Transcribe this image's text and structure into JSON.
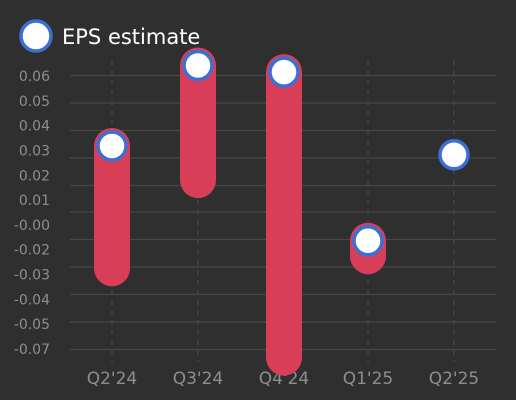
{
  "chart_data": {
    "type": "bar",
    "categories": [
      "Q2'24",
      "Q3'24",
      "Q4'24",
      "Q1'25",
      "Q2'25"
    ],
    "legend": {
      "position": "top-left",
      "entries": [
        "EPS estimate"
      ]
    },
    "series": [
      {
        "name": "EPS estimate",
        "values": [
          0.0235,
          0.06,
          0.057,
          -0.0195,
          0.0195
        ]
      }
    ],
    "ranges": [
      {
        "low": -0.032,
        "high": 0.0235
      },
      {
        "low": 0.008,
        "high": 0.06
      },
      {
        "low": -0.0725,
        "high": 0.057
      },
      {
        "low": -0.0265,
        "high": -0.0195
      },
      null
    ],
    "y_ticks": [
      "0.06",
      "0.05",
      "0.04",
      "0.03",
      "0.02",
      "0.01",
      "-0.00",
      "-0.01",
      "-0.02",
      "-0.03",
      "-0.04",
      "-0.05",
      "-0.07"
    ],
    "ylim": [
      -0.0745,
      0.0625
    ],
    "grid": true,
    "xlabel": "",
    "ylabel": "",
    "title": "",
    "colors": {
      "background": "#2f2f2f",
      "range_bar": "#d83e58",
      "marker_fill": "#ffffff",
      "marker_stroke": "#3b6fd6",
      "grid": "#474747",
      "tick_label": "#8e8e8e",
      "legend_text": "#ffffff"
    }
  }
}
